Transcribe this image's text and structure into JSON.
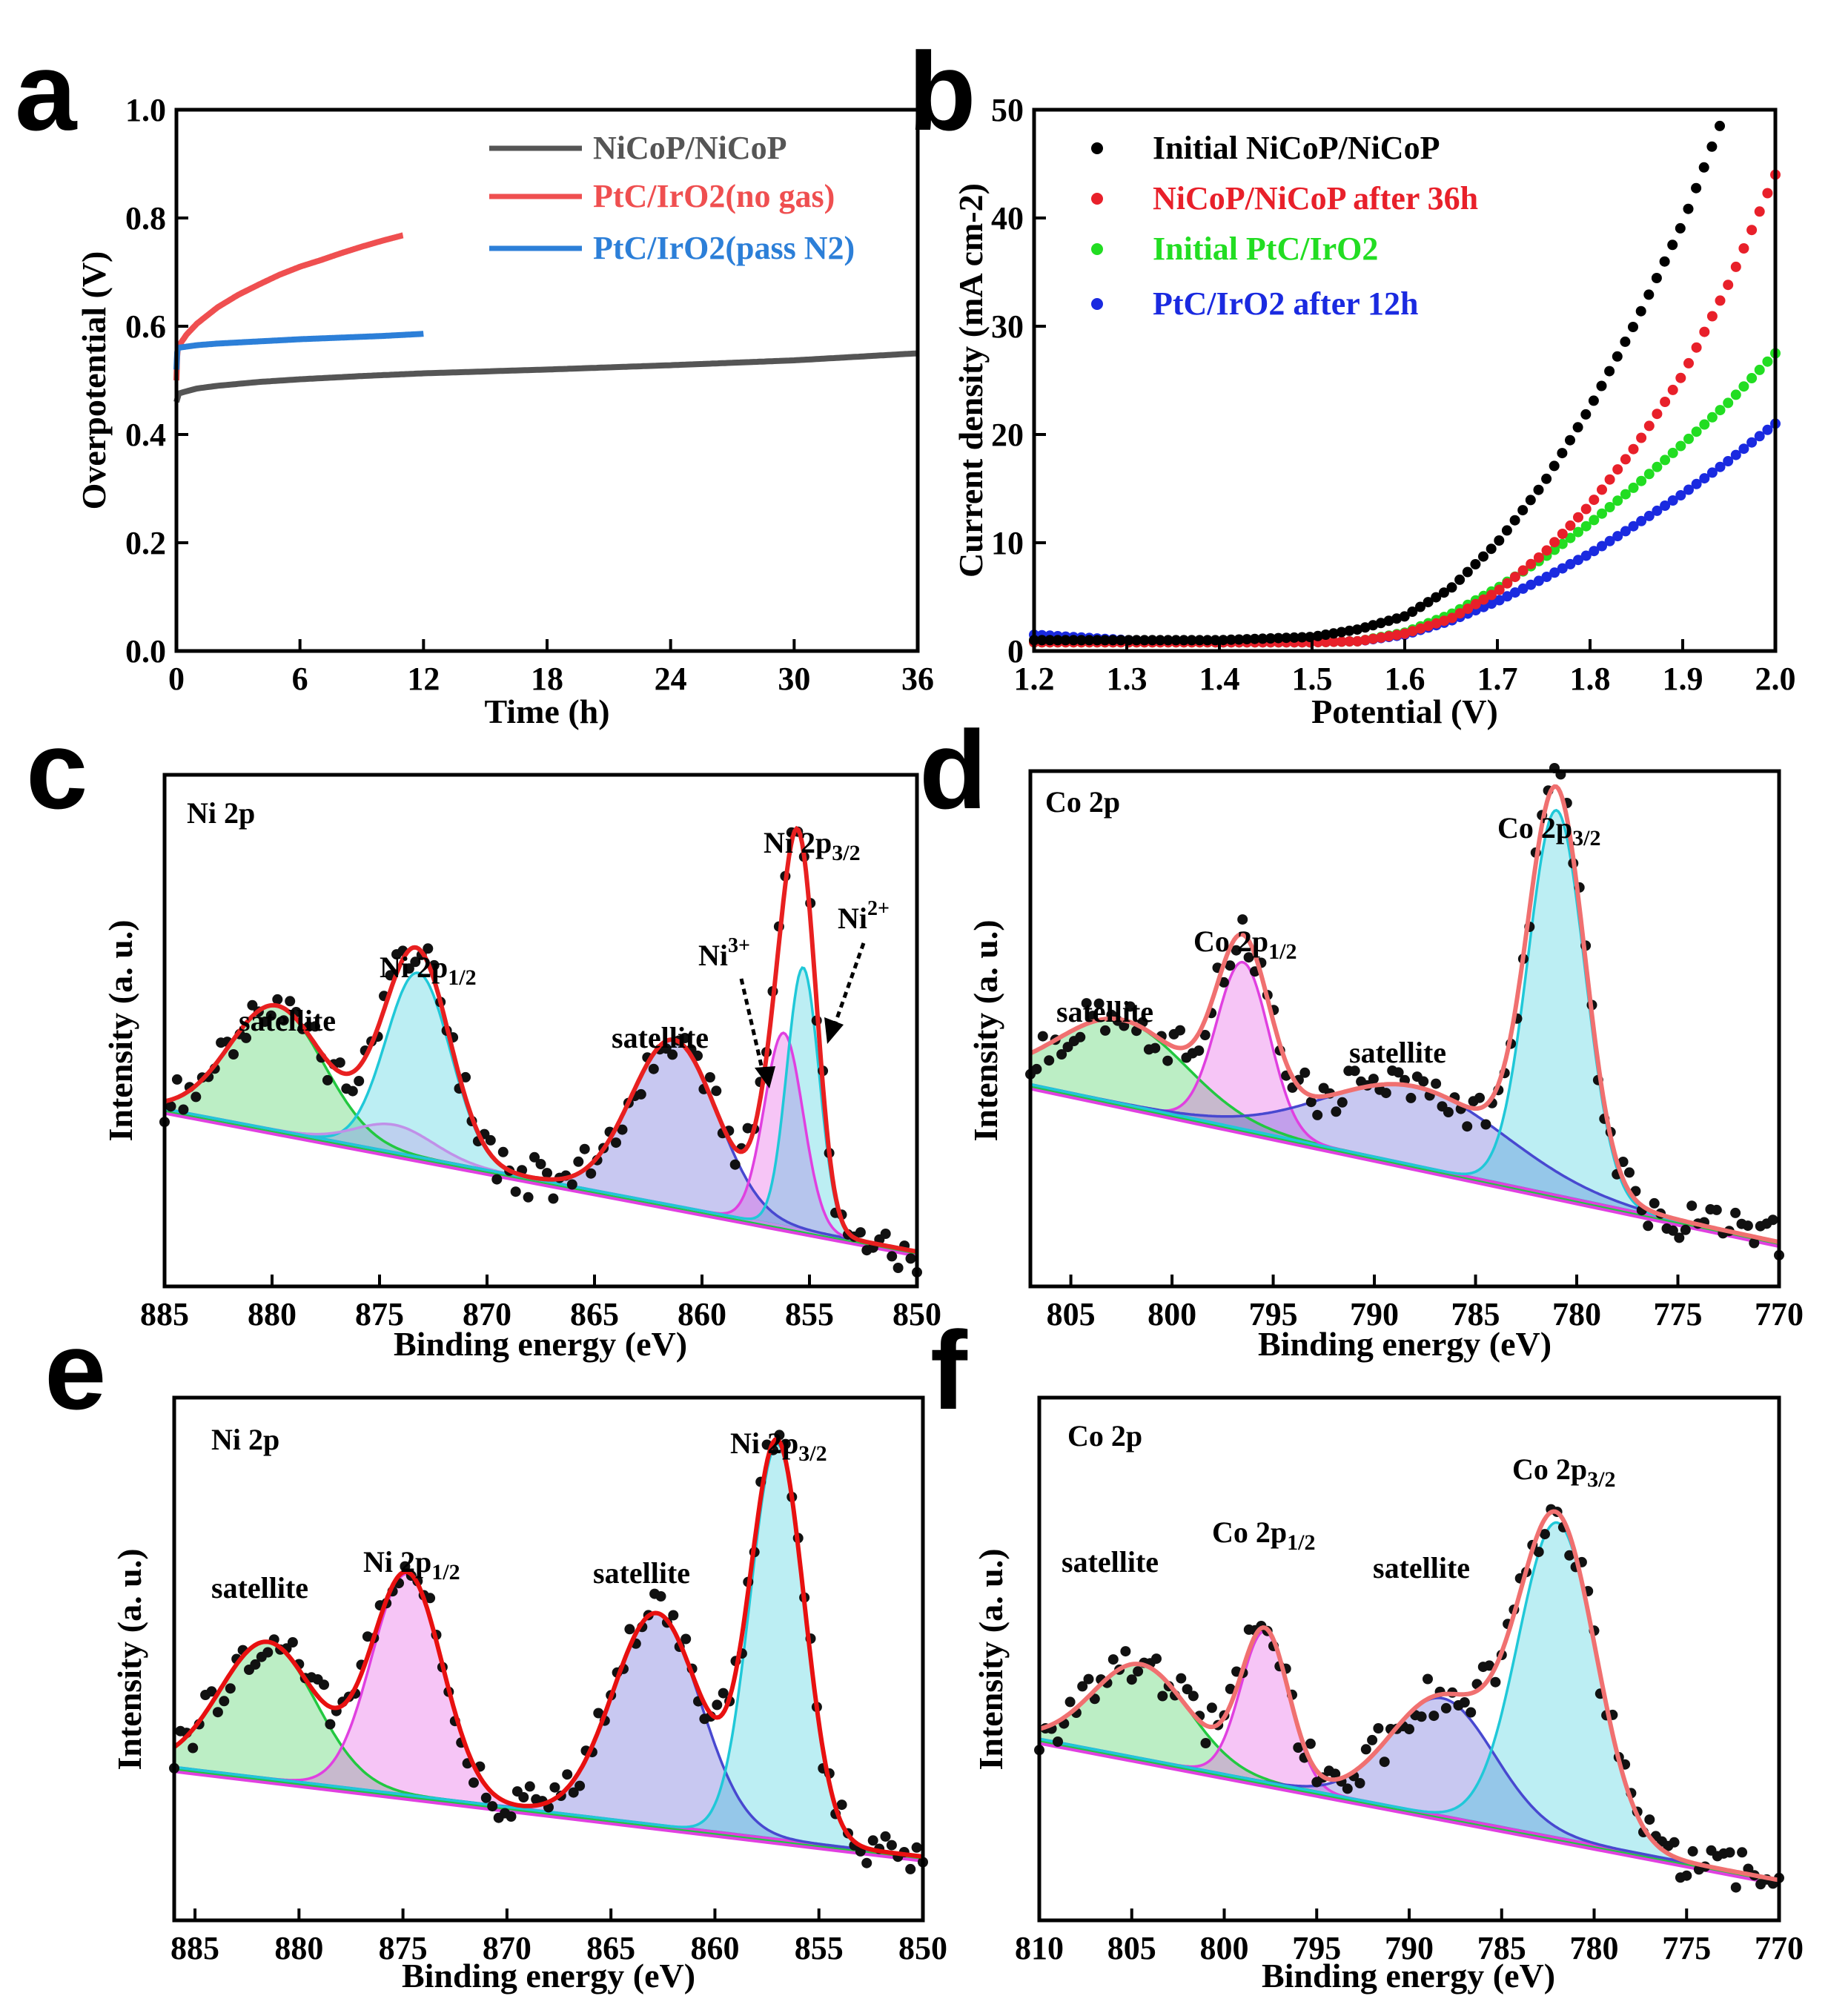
{
  "figure": {
    "panels": [
      "a",
      "b",
      "c",
      "d",
      "e",
      "f"
    ]
  },
  "chart_data": [
    {
      "panel": "a",
      "type": "line",
      "xlabel": "Time (h)",
      "ylabel": "Overpotential (V)",
      "xlim": [
        0,
        36
      ],
      "ylim": [
        0.0,
        1.0
      ],
      "xticks": [
        "0",
        "6",
        "12",
        "18",
        "24",
        "30",
        "36"
      ],
      "yticks": [
        "0.0",
        "0.2",
        "0.4",
        "0.6",
        "0.8",
        "1.0"
      ],
      "legend_position": "top-right",
      "series": [
        {
          "name": "NiCoP/NiCoP",
          "color": "#555555",
          "x": [
            0,
            0.05,
            0.5,
            1,
            2,
            4,
            6,
            9,
            12,
            18,
            24,
            30,
            36
          ],
          "y": [
            0.46,
            0.475,
            0.48,
            0.485,
            0.49,
            0.497,
            0.502,
            0.508,
            0.513,
            0.52,
            0.528,
            0.537,
            0.55
          ]
        },
        {
          "name": "PtC/IrO2(no gas)",
          "color": "#ef4f50",
          "x": [
            0,
            0.05,
            0.5,
            1,
            2,
            3,
            4,
            5,
            6,
            7,
            8,
            9,
            10,
            11
          ],
          "y": [
            0.5,
            0.56,
            0.585,
            0.605,
            0.635,
            0.658,
            0.677,
            0.695,
            0.71,
            0.722,
            0.735,
            0.747,
            0.758,
            0.768
          ]
        },
        {
          "name": "PtC/IrO2(pass N2)",
          "color": "#2c7fd8",
          "x": [
            0,
            0.05,
            1,
            2,
            4,
            6,
            8,
            10,
            12
          ],
          "y": [
            0.52,
            0.56,
            0.565,
            0.568,
            0.572,
            0.576,
            0.579,
            0.582,
            0.586
          ]
        }
      ]
    },
    {
      "panel": "b",
      "type": "scatter",
      "xlabel": "Potential (V)",
      "ylabel": "Current density (mA cm-2)",
      "xlim": [
        1.2,
        2.0
      ],
      "ylim": [
        0,
        50
      ],
      "xticks": [
        "1.2",
        "1.3",
        "1.4",
        "1.5",
        "1.6",
        "1.7",
        "1.8",
        "1.9",
        "2.0"
      ],
      "yticks": [
        "0",
        "10",
        "20",
        "30",
        "40",
        "50"
      ],
      "legend_position": "top-left",
      "series": [
        {
          "name": "Initial NiCoP/NiCoP",
          "color": "#000000",
          "x": [
            1.2,
            1.3,
            1.4,
            1.5,
            1.55,
            1.6,
            1.65,
            1.7,
            1.75,
            1.8,
            1.85,
            1.9,
            1.94
          ],
          "y": [
            1.0,
            1.0,
            1.0,
            1.3,
            2.0,
            3.2,
            5.8,
            10.0,
            15.5,
            22.5,
            30.5,
            39.5,
            48.5
          ]
        },
        {
          "name": "NiCoP/NiCoP after 36h",
          "color": "#e8202a",
          "x": [
            1.2,
            1.3,
            1.4,
            1.5,
            1.55,
            1.6,
            1.65,
            1.7,
            1.75,
            1.8,
            1.85,
            1.9,
            1.95,
            2.0
          ],
          "y": [
            0.8,
            0.8,
            0.8,
            0.8,
            0.9,
            1.6,
            3.0,
            5.5,
            9.0,
            13.5,
            19.0,
            25.5,
            34.0,
            44.0
          ]
        },
        {
          "name": "Initial PtC/IrO2",
          "color": "#22dd22",
          "x": [
            1.2,
            1.3,
            1.4,
            1.5,
            1.55,
            1.6,
            1.65,
            1.7,
            1.75,
            1.8,
            1.85,
            1.9,
            1.95,
            2.0
          ],
          "y": [
            0.8,
            0.8,
            0.8,
            0.8,
            0.9,
            1.7,
            3.4,
            5.8,
            8.6,
            11.8,
            15.3,
            19.1,
            23.0,
            27.5
          ]
        },
        {
          "name": "PtC/IrO2 after 12h",
          "color": "#1a2ae0",
          "x": [
            1.2,
            1.3,
            1.4,
            1.5,
            1.55,
            1.6,
            1.65,
            1.7,
            1.75,
            1.8,
            1.85,
            1.9,
            1.95,
            2.0
          ],
          "y": [
            1.5,
            1.0,
            0.8,
            0.8,
            0.9,
            1.5,
            2.8,
            4.6,
            6.7,
            9.0,
            11.7,
            14.5,
            17.6,
            21.0
          ]
        }
      ]
    },
    {
      "panel": "c",
      "type": "xps",
      "title": "Ni 2p",
      "xlabel": "Binding energy (eV)",
      "ylabel": "Intensity (a. u.)",
      "xlim": [
        885,
        850
      ],
      "ylim": [
        0,
        1
      ],
      "xticks": [
        "885",
        "880",
        "875",
        "870",
        "865",
        "860",
        "855",
        "850"
      ],
      "baseline": [
        0.33,
        0.02
      ],
      "envelope_color": "#e82020",
      "peaks": [
        {
          "center": 879.8,
          "height": 0.27,
          "width": 2.2,
          "color": "#22c840"
        },
        {
          "center": 873.2,
          "height": 0.4,
          "width": 1.5,
          "color": "#20c8d8"
        },
        {
          "center": 874.3,
          "height": 0.06,
          "width": 1.8,
          "color": "#c090e8"
        },
        {
          "center": 861.3,
          "height": 0.36,
          "width": 2.0,
          "color": "#4848d0"
        },
        {
          "center": 856.2,
          "height": 0.42,
          "width": 0.9,
          "color": "#e040e0"
        },
        {
          "center": 855.3,
          "height": 0.57,
          "width": 0.75,
          "color": "#20c8d8"
        }
      ],
      "annotations": [
        "satellite",
        "Ni 2p1/2",
        "satellite",
        "Ni 2p3/2",
        "Ni3+",
        "Ni2+"
      ]
    },
    {
      "panel": "d",
      "type": "xps",
      "title": "Co 2p",
      "xlabel": "Binding energy (eV)",
      "ylabel": "Intensity (a. u.)",
      "xlim": [
        807,
        770
      ],
      "ylim": [
        0,
        1
      ],
      "xticks": [
        "805",
        "800",
        "795",
        "790",
        "785",
        "780",
        "775",
        "770"
      ],
      "baseline": [
        0.38,
        0.04
      ],
      "envelope_color": "#f07070",
      "peaks": [
        {
          "center": 802.5,
          "height": 0.18,
          "width": 3.2,
          "color": "#22c840"
        },
        {
          "center": 796.5,
          "height": 0.36,
          "width": 1.3,
          "color": "#e040e0"
        },
        {
          "center": 788.0,
          "height": 0.17,
          "width": 4.5,
          "color": "#4848d0"
        },
        {
          "center": 781.0,
          "height": 0.83,
          "width": 1.4,
          "color": "#20c8d8"
        }
      ],
      "annotations": [
        "satellite",
        "Co 2p1/2",
        "satellite",
        "Co 2p3/2"
      ]
    },
    {
      "panel": "e",
      "type": "xps",
      "title": "Ni 2p",
      "xlabel": "Binding energy (eV)",
      "ylabel": "Intensity (a. u.)",
      "xlim": [
        886,
        850
      ],
      "ylim": [
        0,
        1
      ],
      "xticks": [
        "885",
        "880",
        "875",
        "870",
        "865",
        "860",
        "855",
        "850"
      ],
      "baseline": [
        0.27,
        0.08
      ],
      "envelope_color": "#e81010",
      "peaks": [
        {
          "center": 881.5,
          "height": 0.29,
          "width": 2.3,
          "color": "#22c840"
        },
        {
          "center": 874.8,
          "height": 0.47,
          "width": 1.7,
          "color": "#e040e0"
        },
        {
          "center": 862.8,
          "height": 0.45,
          "width": 2.1,
          "color": "#4848d0"
        },
        {
          "center": 857.0,
          "height": 0.84,
          "width": 1.3,
          "color": "#20c8d8"
        }
      ],
      "annotations": [
        "satellite",
        "Ni 2p1/2",
        "satellite",
        "Ni 2p3/2"
      ]
    },
    {
      "panel": "f",
      "type": "xps",
      "title": "Co 2p",
      "xlabel": "Binding energy (eV)",
      "ylabel": "Intensity (a. u.)",
      "xlim": [
        810,
        770
      ],
      "ylim": [
        0,
        1
      ],
      "xticks": [
        "810",
        "805",
        "800",
        "795",
        "790",
        "785",
        "780",
        "775",
        "770"
      ],
      "baseline": [
        0.33,
        0.03
      ],
      "envelope_color": "#f07070",
      "peaks": [
        {
          "center": 804.5,
          "height": 0.2,
          "width": 2.6,
          "color": "#22c840"
        },
        {
          "center": 797.8,
          "height": 0.32,
          "width": 1.3,
          "color": "#e040e0"
        },
        {
          "center": 788.2,
          "height": 0.25,
          "width": 2.8,
          "color": "#4848d0"
        },
        {
          "center": 782.0,
          "height": 0.67,
          "width": 2.1,
          "color": "#20c8d8"
        }
      ],
      "annotations": [
        "satellite",
        "Co 2p1/2",
        "satellite",
        "Co 2p3/2"
      ]
    }
  ]
}
